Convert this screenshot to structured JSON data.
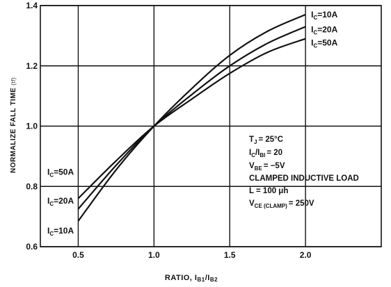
{
  "chart_data": {
    "type": "line",
    "xlabel": "RATIO, I",
    "xlabel_sub1": "B1",
    "xlabel_mid": "/I",
    "xlabel_sub2": "B2",
    "ylabel": "NORMALIZE FALL TIME",
    "ylabel_unit": "(tf)",
    "xlim": [
      0.25,
      2.5
    ],
    "ylim": [
      0.6,
      1.4
    ],
    "x_ticks": [
      0.5,
      1.0,
      1.5,
      2.0
    ],
    "x_tick_labels": [
      "0.5",
      "1.0",
      "1.5",
      "2.0"
    ],
    "y_ticks": [
      0.6,
      0.8,
      1.0,
      1.2,
      1.4
    ],
    "y_tick_labels": [
      "0.6",
      "0.8",
      "1.0",
      "1.2",
      "1.4"
    ],
    "grid": true,
    "series": [
      {
        "name": "I",
        "name_sub": "C",
        "name_value": "=10A",
        "x": [
          0.5,
          0.75,
          1.0,
          1.25,
          1.5,
          1.75,
          2.0
        ],
        "y": [
          0.685,
          0.855,
          1.0,
          1.125,
          1.235,
          1.315,
          1.37
        ]
      },
      {
        "name": "I",
        "name_sub": "C",
        "name_value": "=20A",
        "x": [
          0.5,
          0.75,
          1.0,
          1.25,
          1.5,
          1.75,
          2.0
        ],
        "y": [
          0.725,
          0.87,
          1.0,
          1.105,
          1.2,
          1.275,
          1.33
        ]
      },
      {
        "name": "I",
        "name_sub": "C",
        "name_value": "=50A",
        "x": [
          0.5,
          0.75,
          1.0,
          1.25,
          1.5,
          1.75,
          2.0
        ],
        "y": [
          0.76,
          0.885,
          1.0,
          1.09,
          1.175,
          1.245,
          1.29
        ]
      }
    ],
    "conditions": [
      {
        "main": "T",
        "sub": "J",
        "rest": "= 25°C"
      },
      {
        "main": "I",
        "sub": "C",
        "rest": "/I",
        "sub2": "BI",
        "rest2": "= 20"
      },
      {
        "main": "V",
        "sub": "BE",
        "rest": "= −5V"
      },
      {
        "main": "CLAMPED INDUCTIVE LOAD",
        "sub": "",
        "rest": ""
      },
      {
        "main": "L = 100 μh",
        "sub": "",
        "rest": ""
      },
      {
        "main": "V",
        "sub": "CE (CLAMP)",
        "rest": "= 250V"
      }
    ]
  }
}
